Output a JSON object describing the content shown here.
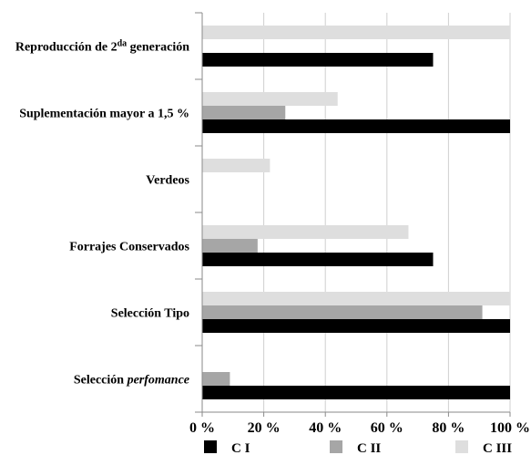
{
  "chart_data": {
    "type": "bar",
    "orientation": "horizontal",
    "stacked": false,
    "categories": [
      "Reproducción de 2da generación",
      "Suplementación mayor a 1,5 %",
      "Verdeos",
      "Forrajes Conservados",
      "Selección Tipo",
      "Selección perfomance"
    ],
    "category_label_parts": [
      [
        {
          "text": "Reproducción de 2"
        },
        {
          "text": "da",
          "sup": true
        },
        {
          "text": " generación"
        }
      ],
      [
        {
          "text": "Suplementación mayor a 1,5 %"
        }
      ],
      [
        {
          "text": "Verdeos"
        }
      ],
      [
        {
          "text": "Forrajes Conservados"
        }
      ],
      [
        {
          "text": "Selección Tipo"
        }
      ],
      [
        {
          "text": "Selección "
        },
        {
          "text": "perfomance",
          "italic": true
        }
      ]
    ],
    "series": [
      {
        "name": "C I",
        "color": "#000000",
        "values": [
          75,
          100,
          0,
          75,
          100,
          100
        ]
      },
      {
        "name": "C II",
        "color": "#a6a6a6",
        "values": [
          0,
          27,
          0,
          18,
          91,
          9
        ]
      },
      {
        "name": "C III",
        "color": "#dedede",
        "values": [
          100,
          44,
          22,
          67,
          100,
          0
        ]
      }
    ],
    "xlim": [
      0,
      100
    ],
    "xticks": [
      0,
      20,
      40,
      60,
      80,
      100
    ],
    "xtick_labels": [
      "0 %",
      "20 %",
      "40 %",
      "60 %",
      "80 %",
      "100 %"
    ],
    "grid": "vertical",
    "legend_position": "bottom",
    "title": "",
    "xlabel": "",
    "ylabel": ""
  }
}
